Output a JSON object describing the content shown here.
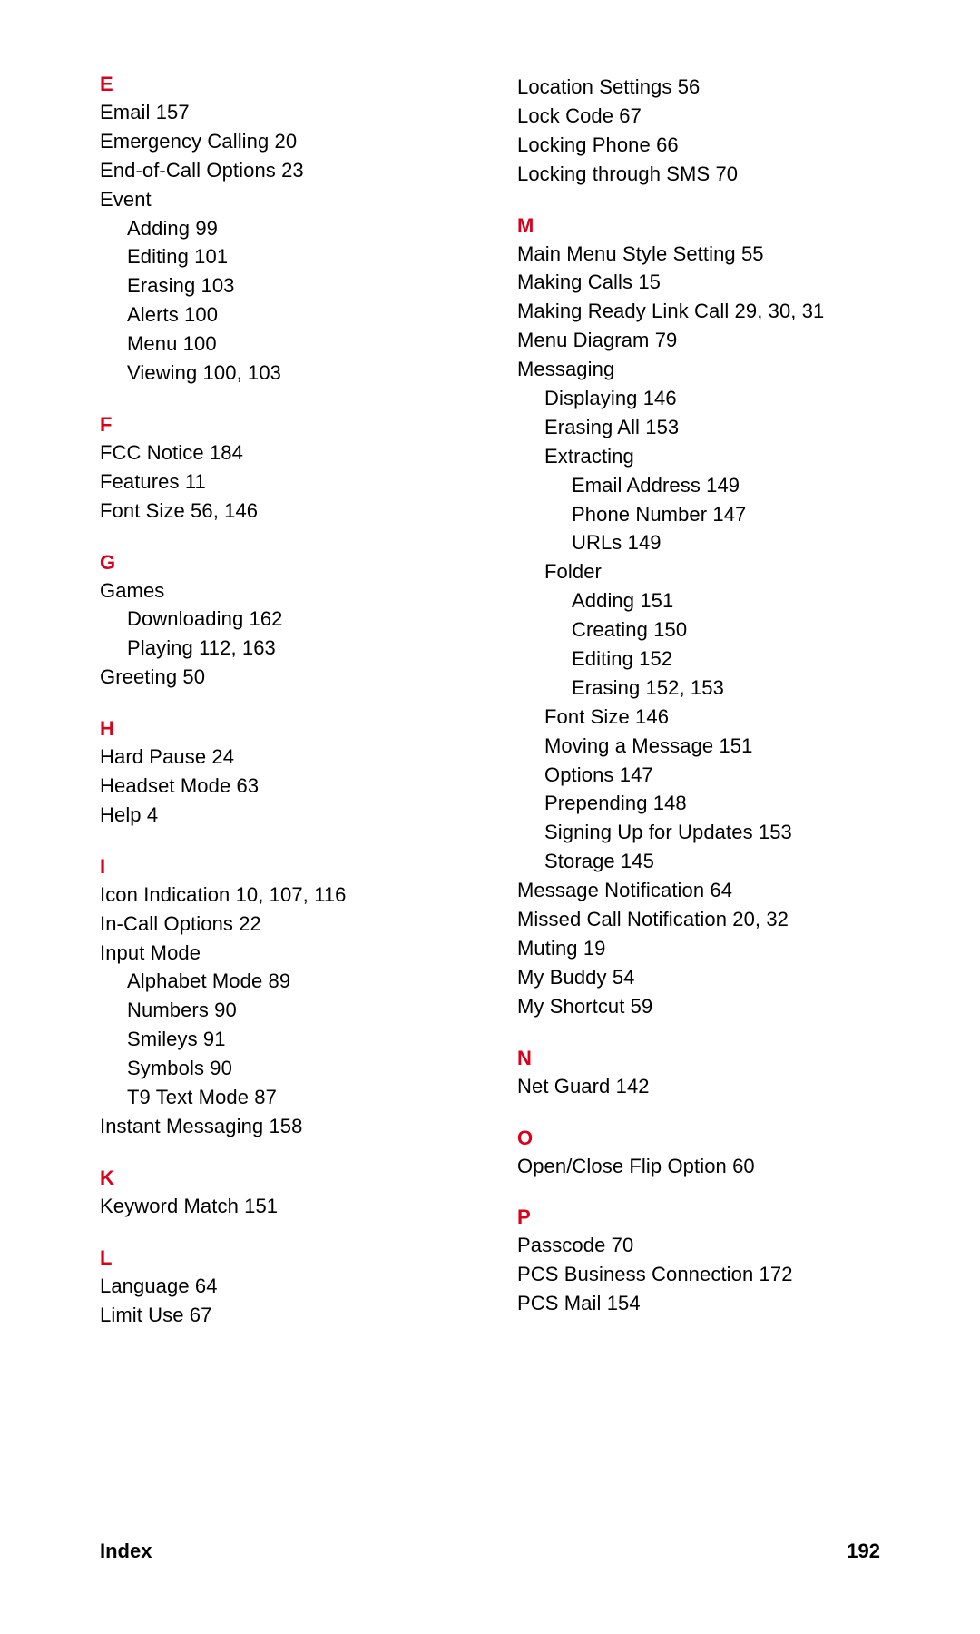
{
  "columns": [
    {
      "sections": [
        {
          "letter": "E",
          "entries": [
            {
              "text": "Email",
              "pages": "157",
              "indent": 0
            },
            {
              "text": "Emergency Calling",
              "pages": "20",
              "indent": 0
            },
            {
              "text": "End-of-Call Options",
              "pages": "23",
              "indent": 0
            },
            {
              "text": "Event",
              "pages": "",
              "indent": 0
            },
            {
              "text": "Adding",
              "pages": "99",
              "indent": 1
            },
            {
              "text": "Editing",
              "pages": "101",
              "indent": 1
            },
            {
              "text": "Erasing",
              "pages": "103",
              "indent": 1
            },
            {
              "text": "Alerts",
              "pages": "100",
              "indent": 1
            },
            {
              "text": "Menu",
              "pages": "100",
              "indent": 1
            },
            {
              "text": "Viewing",
              "pages": "100, 103",
              "indent": 1
            }
          ]
        },
        {
          "letter": "F",
          "entries": [
            {
              "text": "FCC Notice",
              "pages": "184",
              "indent": 0
            },
            {
              "text": "Features",
              "pages": "11",
              "indent": 0
            },
            {
              "text": "Font Size",
              "pages": "56, 146",
              "indent": 0
            }
          ]
        },
        {
          "letter": "G",
          "entries": [
            {
              "text": "Games",
              "pages": "",
              "indent": 0
            },
            {
              "text": "Downloading",
              "pages": "162",
              "indent": 1
            },
            {
              "text": "Playing",
              "pages": "112, 163",
              "indent": 1
            },
            {
              "text": "Greeting",
              "pages": "50",
              "indent": 0
            }
          ]
        },
        {
          "letter": "H",
          "entries": [
            {
              "text": "Hard Pause",
              "pages": "24",
              "indent": 0
            },
            {
              "text": "Headset Mode",
              "pages": "63",
              "indent": 0
            },
            {
              "text": "Help",
              "pages": "4",
              "indent": 0
            }
          ]
        },
        {
          "letter": "I",
          "entries": [
            {
              "text": "Icon Indication",
              "pages": "10, 107, 116",
              "indent": 0
            },
            {
              "text": "In-Call Options",
              "pages": "22",
              "indent": 0
            },
            {
              "text": "Input Mode",
              "pages": "",
              "indent": 0
            },
            {
              "text": "Alphabet Mode",
              "pages": "89",
              "indent": 1
            },
            {
              "text": "Numbers",
              "pages": "90",
              "indent": 1
            },
            {
              "text": "Smileys",
              "pages": "91",
              "indent": 1
            },
            {
              "text": "Symbols",
              "pages": "90",
              "indent": 1
            },
            {
              "text": "T9 Text Mode",
              "pages": "87",
              "indent": 1
            },
            {
              "text": "Instant Messaging",
              "pages": "158",
              "indent": 0
            }
          ]
        },
        {
          "letter": "K",
          "entries": [
            {
              "text": "Keyword Match",
              "pages": "151",
              "indent": 0
            }
          ]
        },
        {
          "letter": "L",
          "entries": [
            {
              "text": "Language",
              "pages": "64",
              "indent": 0
            },
            {
              "text": "Limit Use",
              "pages": "67",
              "indent": 0
            }
          ]
        }
      ]
    },
    {
      "sections": [
        {
          "letter": "",
          "entries": [
            {
              "text": "Location Settings",
              "pages": "56",
              "indent": 0
            },
            {
              "text": "Lock Code",
              "pages": "67",
              "indent": 0
            },
            {
              "text": "Locking Phone",
              "pages": "66",
              "indent": 0
            },
            {
              "text": "Locking through SMS",
              "pages": "70",
              "indent": 0
            }
          ]
        },
        {
          "letter": "M",
          "entries": [
            {
              "text": "Main Menu Style Setting",
              "pages": "55",
              "indent": 0
            },
            {
              "text": "Making Calls",
              "pages": "15",
              "indent": 0
            },
            {
              "text": "Making Ready Link Call",
              "pages": "29, 30, 31",
              "indent": 0
            },
            {
              "text": "Menu Diagram",
              "pages": "79",
              "indent": 0
            },
            {
              "text": "Messaging",
              "pages": "",
              "indent": 0
            },
            {
              "text": "Displaying",
              "pages": "146",
              "indent": 1
            },
            {
              "text": "Erasing All",
              "pages": "153",
              "indent": 1
            },
            {
              "text": "Extracting",
              "pages": "",
              "indent": 1
            },
            {
              "text": "Email Address",
              "pages": "149",
              "indent": 2
            },
            {
              "text": "Phone Number",
              "pages": "147",
              "indent": 2
            },
            {
              "text": "URLs",
              "pages": "149",
              "indent": 2
            },
            {
              "text": "Folder",
              "pages": "",
              "indent": 1
            },
            {
              "text": "Adding",
              "pages": "151",
              "indent": 2
            },
            {
              "text": "Creating",
              "pages": "150",
              "indent": 2
            },
            {
              "text": "Editing",
              "pages": "152",
              "indent": 2
            },
            {
              "text": "Erasing",
              "pages": "152, 153",
              "indent": 2
            },
            {
              "text": "Font Size",
              "pages": "146",
              "indent": 1
            },
            {
              "text": "Moving a Message",
              "pages": "151",
              "indent": 1
            },
            {
              "text": "Options",
              "pages": "147",
              "indent": 1
            },
            {
              "text": "Prepending",
              "pages": "148",
              "indent": 1
            },
            {
              "text": "Signing Up for Updates",
              "pages": "153",
              "indent": 1
            },
            {
              "text": "Storage",
              "pages": "145",
              "indent": 1
            },
            {
              "text": "Message Notification",
              "pages": "64",
              "indent": 0
            },
            {
              "text": "Missed Call Notification",
              "pages": "20, 32",
              "indent": 0
            },
            {
              "text": "Muting",
              "pages": "19",
              "indent": 0
            },
            {
              "text": "My Buddy",
              "pages": "54",
              "indent": 0
            },
            {
              "text": "My Shortcut",
              "pages": "59",
              "indent": 0
            }
          ]
        },
        {
          "letter": "N",
          "entries": [
            {
              "text": "Net Guard",
              "pages": "142",
              "indent": 0
            }
          ]
        },
        {
          "letter": "O",
          "entries": [
            {
              "text": "Open/Close Flip Option",
              "pages": "60",
              "indent": 0
            }
          ]
        },
        {
          "letter": "P",
          "entries": [
            {
              "text": "Passcode",
              "pages": "70",
              "indent": 0
            },
            {
              "text": "PCS Business Connection",
              "pages": "172",
              "indent": 0
            },
            {
              "text": "PCS Mail",
              "pages": "154",
              "indent": 0
            }
          ]
        }
      ]
    }
  ],
  "footer": {
    "label": "Index",
    "page_number": "192"
  }
}
